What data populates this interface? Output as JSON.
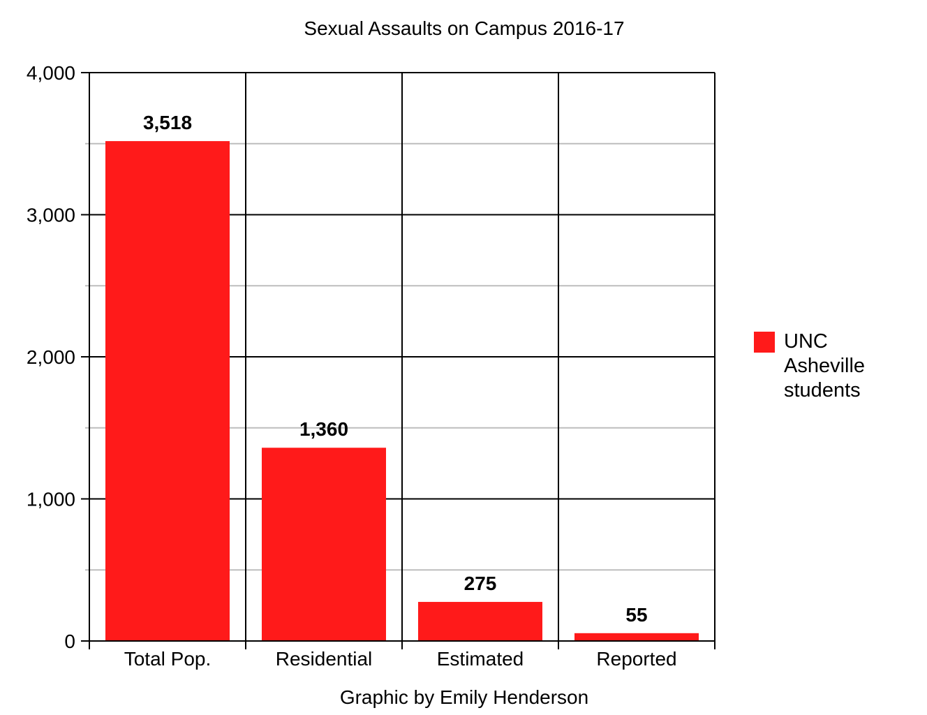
{
  "chart_data": {
    "type": "bar",
    "title": "Sexual Assaults on Campus 2016-17",
    "xlabel": "Graphic by Emily Henderson",
    "ylabel": "",
    "categories": [
      "Total Pop.",
      "Residential",
      "Estimated",
      "Reported"
    ],
    "series": [
      {
        "name": "UNC Asheville students",
        "values": [
          3518,
          1360,
          275,
          55
        ],
        "data_labels": [
          "3,518",
          "1,360",
          "275",
          "55"
        ],
        "color": "#ff1a1a"
      }
    ],
    "ylim": [
      0,
      4000
    ],
    "y_ticks": [
      0,
      1000,
      2000,
      3000,
      4000
    ],
    "y_tick_labels": [
      "0",
      "1,000",
      "2,000",
      "3,000",
      "4,000"
    ],
    "y_minor_ticks": [
      500,
      1500,
      2500,
      3500
    ],
    "grid": true,
    "legend_position": "right"
  }
}
